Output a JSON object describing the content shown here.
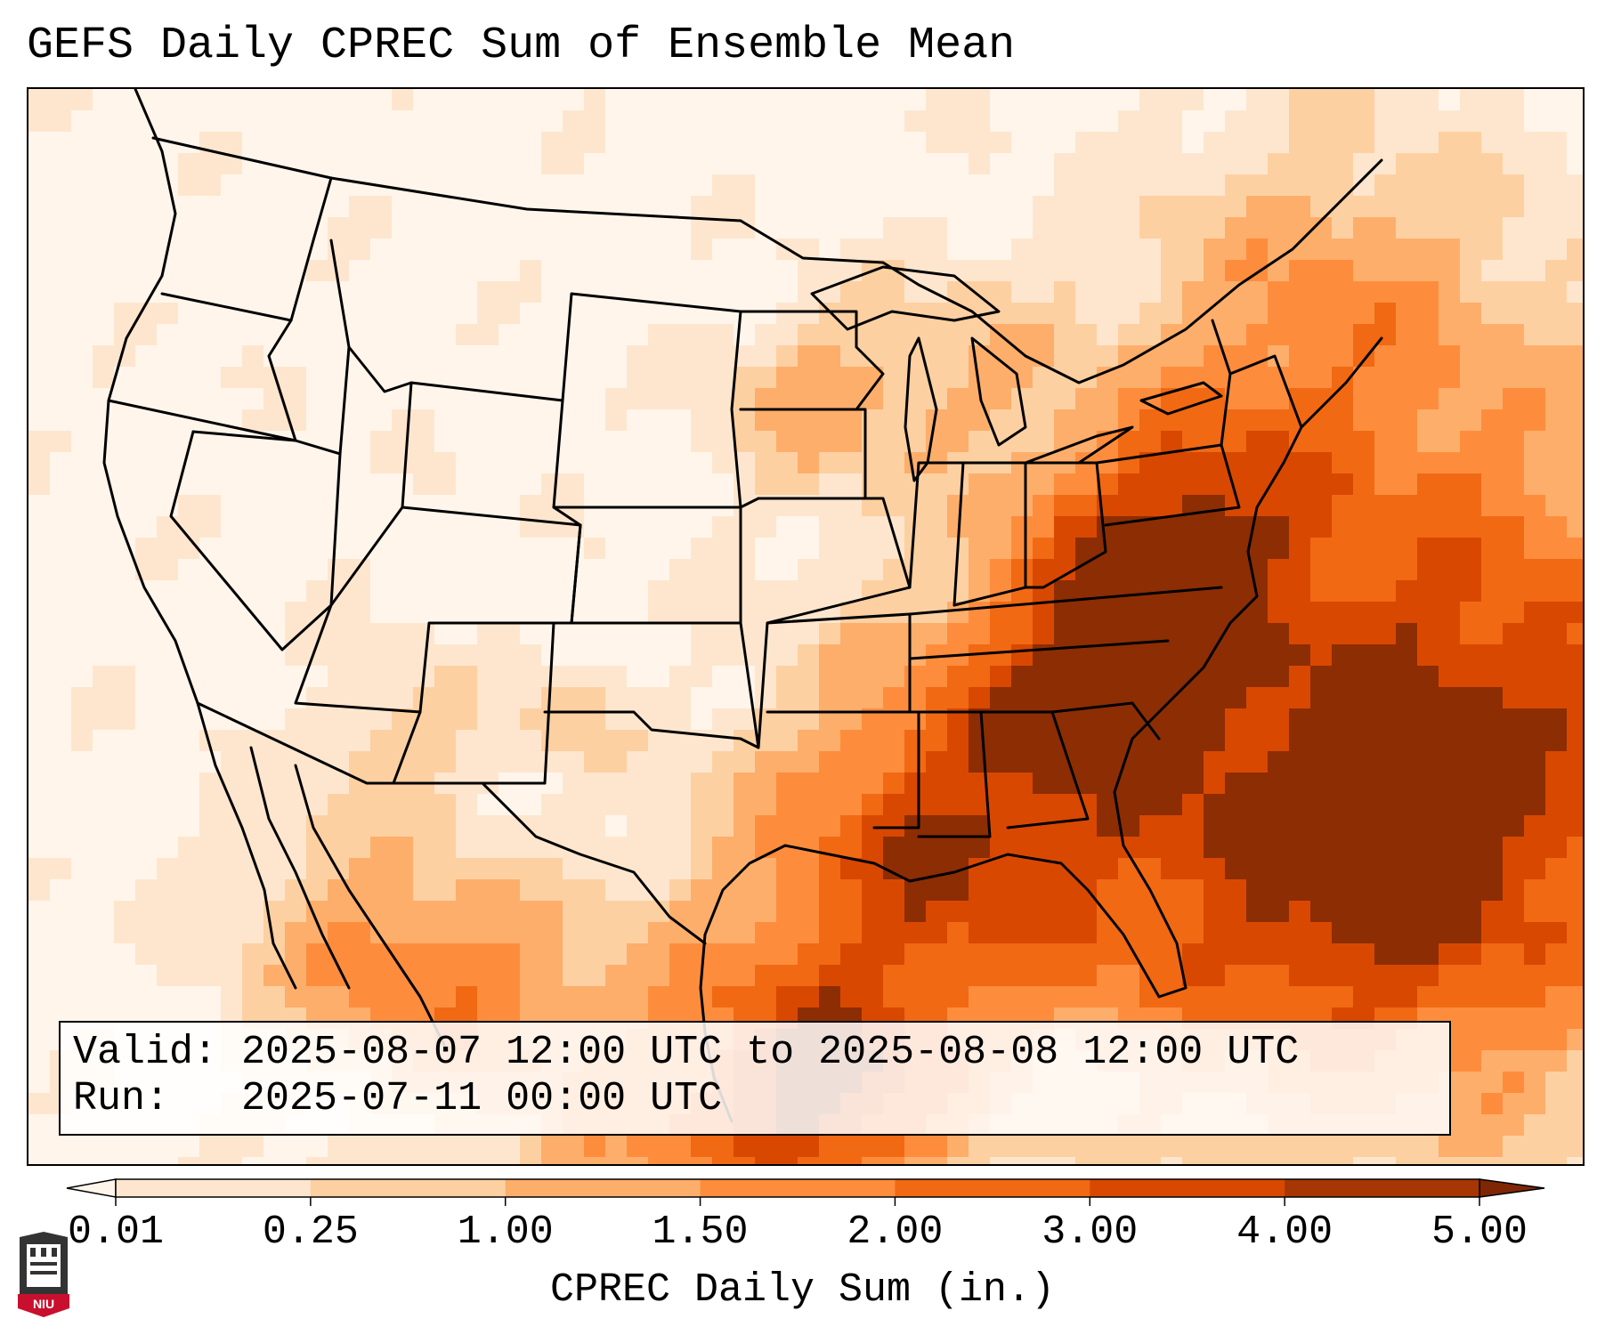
{
  "title": "GEFS Daily CPREC Sum of Ensemble Mean",
  "info": {
    "valid_label": "Valid:",
    "valid_value": "2025-08-07 12:00 UTC to 2025-08-08 12:00 UTC",
    "run_label": "Run:",
    "run_value": "2025-07-11 00:00 UTC"
  },
  "colorbar": {
    "label": "CPREC Daily Sum (in.)",
    "ticks": [
      "0.01",
      "0.25",
      "1.00",
      "1.50",
      "2.00",
      "3.00",
      "4.00",
      "5.00"
    ],
    "colors": [
      "#fff5eb",
      "#fee6ce",
      "#fdd0a2",
      "#fdae6b",
      "#fd8d3c",
      "#f16913",
      "#d94801",
      "#a63603",
      "#7f2704"
    ],
    "extend": "both"
  },
  "map": {
    "projection": "lambert-conformal",
    "region": "CONUS",
    "palette": [
      "#fff5eb",
      "#fee6ce",
      "#fdd0a2",
      "#fdae6b",
      "#fd8d3c",
      "#f16913",
      "#d94801",
      "#8c2d04"
    ]
  },
  "logo": {
    "text": "NIU",
    "icon": "niu-tower-logo-icon"
  }
}
